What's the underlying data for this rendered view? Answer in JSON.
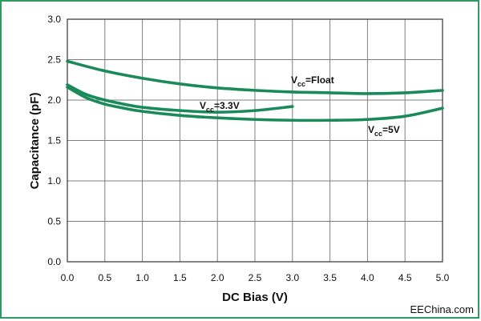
{
  "chart_data": {
    "type": "line",
    "title": "",
    "xlabel": "DC Bias (V)",
    "ylabel": "Capacitance (pF)",
    "xlim": [
      0,
      5
    ],
    "ylim": [
      0,
      3
    ],
    "x_ticks": [
      "0.0",
      "0.5",
      "1.0",
      "1.5",
      "2.0",
      "2.5",
      "3.0",
      "3.5",
      "4.0",
      "4.5",
      "5.0"
    ],
    "y_ticks": [
      "0.0",
      "0.5",
      "1.0",
      "1.5",
      "2.0",
      "2.5",
      "3.0"
    ],
    "grid": true,
    "line_color": "#1a8a5a",
    "series": [
      {
        "name": "Vcc=Float",
        "label_main": "V",
        "label_sub": "cc",
        "label_suffix": "=Float",
        "x": [
          0,
          0.5,
          1,
          1.5,
          2,
          2.5,
          3,
          3.5,
          4,
          4.5,
          5
        ],
        "y": [
          2.48,
          2.36,
          2.27,
          2.2,
          2.15,
          2.12,
          2.1,
          2.09,
          2.08,
          2.09,
          2.12
        ]
      },
      {
        "name": "Vcc=3.3V",
        "label_main": "V",
        "label_sub": "cc",
        "label_suffix": "=3.3V",
        "x": [
          0,
          0.25,
          0.5,
          0.75,
          1,
          1.5,
          2,
          2.5,
          3
        ],
        "y": [
          2.19,
          2.07,
          2.0,
          1.95,
          1.91,
          1.87,
          1.85,
          1.87,
          1.92
        ]
      },
      {
        "name": "Vcc=5V",
        "label_main": "V",
        "label_sub": "cc",
        "label_suffix": "=5V",
        "x": [
          0,
          0.25,
          0.5,
          0.75,
          1,
          1.5,
          2,
          2.5,
          3,
          3.5,
          4,
          4.5,
          5
        ],
        "y": [
          2.16,
          2.03,
          1.95,
          1.9,
          1.86,
          1.81,
          1.78,
          1.76,
          1.75,
          1.75,
          1.76,
          1.8,
          1.9
        ]
      }
    ]
  },
  "watermark": "EEChina.com"
}
